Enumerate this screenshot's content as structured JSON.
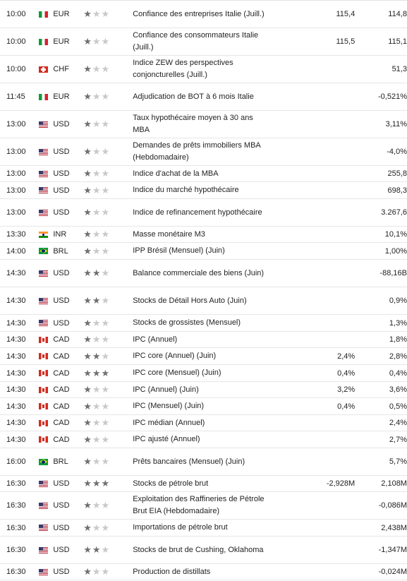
{
  "rows": [
    {
      "time": "10:00",
      "flag": "it",
      "currency": "EUR",
      "importance": 1,
      "event": "Confiance des entreprises Italie (Juill.)",
      "actual": "",
      "forecast": "115,4",
      "previous": "114,8",
      "h": 39
    },
    {
      "time": "10:00",
      "flag": "it",
      "currency": "EUR",
      "importance": 1,
      "event": "Confiance des consommateurs Italie (Juill.)",
      "actual": "",
      "forecast": "115,5",
      "previous": "115,1",
      "h": 39
    },
    {
      "time": "10:00",
      "flag": "ch",
      "currency": "CHF",
      "importance": 1,
      "event": "Indice ZEW des perspectives conjoncturelles (Juill.)",
      "actual": "",
      "forecast": "",
      "previous": "51,3",
      "h": 39
    },
    {
      "time": "11:45",
      "flag": "it",
      "currency": "EUR",
      "importance": 1,
      "event": "Adjudication de BOT à 6 mois Italie",
      "actual": "",
      "forecast": "",
      "previous": "-0,521%",
      "h": 39
    },
    {
      "time": "13:00",
      "flag": "us",
      "currency": "USD",
      "importance": 1,
      "event": "Taux hypothécaire moyen à 30 ans MBA",
      "actual": "",
      "forecast": "",
      "previous": "3,11%",
      "h": 39
    },
    {
      "time": "13:00",
      "flag": "us",
      "currency": "USD",
      "importance": 1,
      "event": "Demandes de prêts immobiliers MBA (Hebdomadaire)",
      "actual": "",
      "forecast": "",
      "previous": "-4,0%",
      "h": 39
    },
    {
      "time": "13:00",
      "flag": "us",
      "currency": "USD",
      "importance": 1,
      "event": "Indice d'achat de la MBA",
      "actual": "",
      "forecast": "",
      "previous": "255,8",
      "h": 23
    },
    {
      "time": "13:00",
      "flag": "us",
      "currency": "USD",
      "importance": 1,
      "event": "Indice du marché hypothécaire",
      "actual": "",
      "forecast": "",
      "previous": "698,3",
      "h": 24
    },
    {
      "time": "13:00",
      "flag": "us",
      "currency": "USD",
      "importance": 1,
      "event": "Indice de refinancement hypothécaire",
      "actual": "",
      "forecast": "",
      "previous": "3.267,6",
      "h": 39
    },
    {
      "time": "13:30",
      "flag": "in",
      "currency": "INR",
      "importance": 1,
      "event": "Masse monétaire M3",
      "actual": "",
      "forecast": "",
      "previous": "10,1%",
      "h": 23
    },
    {
      "time": "14:00",
      "flag": "br",
      "currency": "BRL",
      "importance": 1,
      "event": "IPP Brésil (Mensuel) (Juin)",
      "actual": "",
      "forecast": "",
      "previous": "1,00%",
      "h": 24
    },
    {
      "time": "14:30",
      "flag": "us",
      "currency": "USD",
      "importance": 2,
      "event": "Balance commerciale des biens (Juin)",
      "actual": "",
      "forecast": "",
      "previous": "-88,16B",
      "h": 39
    },
    {
      "time": "14:30",
      "flag": "us",
      "currency": "USD",
      "importance": 2,
      "event": "Stocks de Détail Hors Auto (Juin)",
      "actual": "",
      "forecast": "",
      "previous": "0,9%",
      "h": 39
    },
    {
      "time": "14:30",
      "flag": "us",
      "currency": "USD",
      "importance": 1,
      "event": "Stocks de grossistes (Mensuel)",
      "actual": "",
      "forecast": "",
      "previous": "1,3%",
      "h": 24
    },
    {
      "time": "14:30",
      "flag": "ca",
      "currency": "CAD",
      "importance": 1,
      "event": "IPC (Annuel)",
      "actual": "",
      "forecast": "",
      "previous": "1,8%",
      "h": 23
    },
    {
      "time": "14:30",
      "flag": "ca",
      "currency": "CAD",
      "importance": 2,
      "event": "IPC core (Annuel) (Juin)",
      "actual": "",
      "forecast": "2,4%",
      "previous": "2,8%",
      "h": 24
    },
    {
      "time": "14:30",
      "flag": "ca",
      "currency": "CAD",
      "importance": 3,
      "event": "IPC core (Mensuel) (Juin)",
      "actual": "",
      "forecast": "0,4%",
      "previous": "0,4%",
      "h": 24
    },
    {
      "time": "14:30",
      "flag": "ca",
      "currency": "CAD",
      "importance": 1,
      "event": "IPC (Annuel) (Juin)",
      "actual": "",
      "forecast": "3,2%",
      "previous": "3,6%",
      "h": 23
    },
    {
      "time": "14:30",
      "flag": "ca",
      "currency": "CAD",
      "importance": 1,
      "event": "IPC (Mensuel) (Juin)",
      "actual": "",
      "forecast": "0,4%",
      "previous": "0,5%",
      "h": 24
    },
    {
      "time": "14:30",
      "flag": "ca",
      "currency": "CAD",
      "importance": 1,
      "event": "IPC médian (Annuel)",
      "actual": "",
      "forecast": "",
      "previous": "2,4%",
      "h": 23
    },
    {
      "time": "14:30",
      "flag": "ca",
      "currency": "CAD",
      "importance": 1,
      "event": "IPC ajusté (Annuel)",
      "actual": "",
      "forecast": "",
      "previous": "2,7%",
      "h": 24
    },
    {
      "time": "16:00",
      "flag": "br",
      "currency": "BRL",
      "importance": 1,
      "event": "Prêts bancaires (Mensuel) (Juin)",
      "actual": "",
      "forecast": "",
      "previous": "5,7%",
      "h": 39
    },
    {
      "time": "16:30",
      "flag": "us",
      "currency": "USD",
      "importance": 3,
      "event": "Stocks de pétrole brut",
      "actual": "",
      "forecast": "-2,928M",
      "previous": "2,108M",
      "h": 23
    },
    {
      "time": "16:30",
      "flag": "us",
      "currency": "USD",
      "importance": 1,
      "event": "Exploitation des Raffineries de Pétrole Brut EIA (Hebdomadaire)",
      "actual": "",
      "forecast": "",
      "previous": "-0,086M",
      "h": 39
    },
    {
      "time": "16:30",
      "flag": "us",
      "currency": "USD",
      "importance": 1,
      "event": "Importations de pétrole brut",
      "actual": "",
      "forecast": "",
      "previous": "2,438M",
      "h": 24
    },
    {
      "time": "16:30",
      "flag": "us",
      "currency": "USD",
      "importance": 2,
      "event": "Stocks de brut de Cushing, Oklahoma",
      "actual": "",
      "forecast": "",
      "previous": "-1,347M",
      "h": 39
    },
    {
      "time": "16:30",
      "flag": "us",
      "currency": "USD",
      "importance": 1,
      "event": "Production de distillats",
      "actual": "",
      "forecast": "",
      "previous": "-0,024M",
      "h": 23
    }
  ]
}
